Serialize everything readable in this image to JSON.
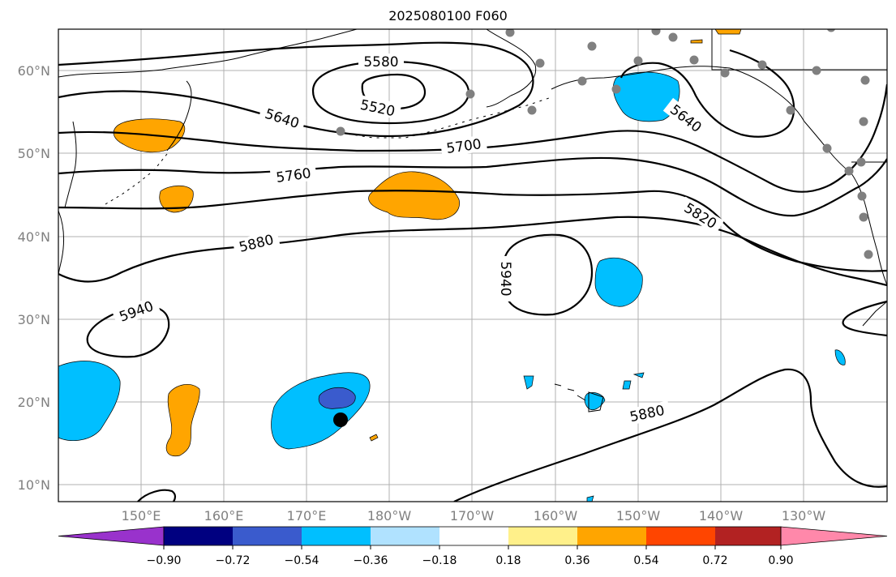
{
  "title": "2025080100 F060",
  "map": {
    "lat_labels": [
      "60°N",
      "50°N",
      "40°N",
      "30°N",
      "20°N",
      "10°N"
    ],
    "lon_labels": [
      "150°E",
      "160°E",
      "170°E",
      "180°W",
      "170°W",
      "160°W",
      "150°W",
      "140°W",
      "130°W"
    ],
    "contours": {
      "unit": "gpm",
      "levels": [
        {
          "value": 5520,
          "label": "5520"
        },
        {
          "value": 5580,
          "label": "5580"
        },
        {
          "value": 5640,
          "label": "5640"
        },
        {
          "value": 5700,
          "label": "5700"
        },
        {
          "value": 5760,
          "label": "5760"
        },
        {
          "value": 5820,
          "label": "5820"
        },
        {
          "value": 5880,
          "label": "5880"
        },
        {
          "value": 5940,
          "label": "5940"
        }
      ]
    },
    "markers": {
      "storm_center": "black-dot",
      "stations": "gray-dots"
    },
    "colors": {
      "land_outline": "#000000",
      "grid": "#b0b0b0",
      "contour": "#000000",
      "station": "#808080",
      "storm": "#000000"
    }
  },
  "colorbar": {
    "tick_labels": [
      "−0.90",
      "−0.72",
      "−0.54",
      "−0.36",
      "−0.18",
      "0.18",
      "0.36",
      "0.54",
      "0.72",
      "0.90"
    ],
    "colors": [
      "#9932cc",
      "#000080",
      "#3a5bcd",
      "#00bfff",
      "#b0e2ff",
      "#ffffff",
      "#fff08a",
      "#ffa500",
      "#ff4500",
      "#b22222",
      "#ff88aa"
    ]
  }
}
